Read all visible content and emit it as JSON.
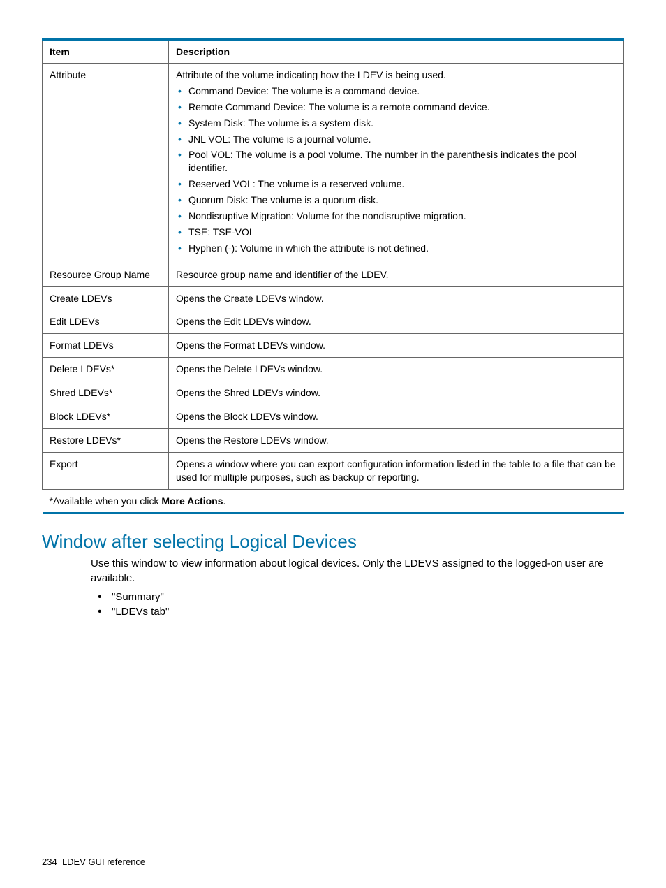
{
  "table": {
    "headers": {
      "item": "Item",
      "description": "Description"
    },
    "rows": [
      {
        "item": "Attribute",
        "desc_intro": "Attribute of the volume indicating how the LDEV is being used.",
        "bullets": [
          "Command Device: The volume is a command device.",
          "Remote Command Device: The volume is a remote command device.",
          "System Disk: The volume is a system disk.",
          "JNL VOL: The volume is a journal volume.",
          "Pool VOL: The volume is a pool volume. The number in the parenthesis indicates the pool identifier.",
          "Reserved VOL: The volume is a reserved volume.",
          "Quorum Disk: The volume is a quorum disk.",
          "Nondisruptive Migration: Volume for the nondisruptive migration.",
          "TSE: TSE-VOL",
          "Hyphen (-): Volume in which the attribute is not defined."
        ]
      },
      {
        "item": "Resource Group Name",
        "desc": "Resource group name and identifier of the LDEV."
      },
      {
        "item": "Create LDEVs",
        "desc": "Opens the Create LDEVs window."
      },
      {
        "item": "Edit LDEVs",
        "desc": "Opens the Edit LDEVs window."
      },
      {
        "item": "Format LDEVs",
        "desc": "Opens the Format LDEVs window."
      },
      {
        "item": "Delete LDEVs*",
        "desc": "Opens the Delete LDEVs window."
      },
      {
        "item": "Shred LDEVs*",
        "desc": "Opens the Shred LDEVs window."
      },
      {
        "item": "Block LDEVs*",
        "desc": "Opens the Block LDEVs window."
      },
      {
        "item": "Restore LDEVs*",
        "desc": "Opens the Restore LDEVs window."
      },
      {
        "item": "Export",
        "desc": "Opens a window where you can export configuration information listed in the table to a file that can be used for multiple purposes, such as backup or reporting."
      }
    ],
    "footnote_prefix": "*Available when you click ",
    "footnote_bold": "More Actions",
    "footnote_suffix": "."
  },
  "section": {
    "heading": "Window after selecting Logical Devices",
    "body": "Use this window to view information about logical devices. Only the LDEVS assigned to the logged-on user are available.",
    "links": [
      "\"Summary\"",
      "\"LDEVs tab\""
    ]
  },
  "footer": {
    "page_number": "234",
    "title": "LDEV GUI reference"
  }
}
